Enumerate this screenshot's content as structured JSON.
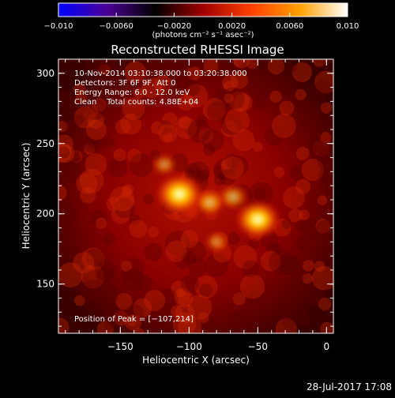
{
  "chart_data": {
    "type": "heatmap",
    "title": "Reconstructed RHESSI Image",
    "xlabel": "Heliocentric X (arcsec)",
    "ylabel": "Heliocentric Y (arcsec)",
    "xlim": [
      -195,
      5
    ],
    "ylim": [
      115,
      310
    ],
    "xticks": [
      -150,
      -100,
      -50,
      0
    ],
    "xtick_labels": [
      "−150",
      "−100",
      "−50",
      "0"
    ],
    "yticks": [
      150,
      200,
      250,
      300
    ],
    "ytick_labels": [
      "150",
      "200",
      "250",
      "300"
    ],
    "colorbar": {
      "range": [
        -0.01,
        0.01
      ],
      "ticks": [
        -0.01,
        -0.006,
        -0.002,
        0.002,
        0.006,
        0.01
      ],
      "tick_labels": [
        "−0.010",
        "−0.0060",
        "−0.0020",
        "0.0020",
        "0.0060",
        "0.010"
      ],
      "unit_label": "(photons cm⁻² s⁻¹ asec⁻²)",
      "colors": [
        "#0000ff",
        "#4b0096",
        "#000000",
        "#a00000",
        "#ff4000",
        "#ffa000",
        "#ffffff"
      ]
    },
    "annotations": [
      "10-Nov-2014 03:10:38.000 to 03:20:38.000",
      "Detectors: 3F 6F 9F, Att 0",
      "Energy Range: 6.0 - 12.0 keV",
      "Clean    Total counts: 4.88E+04"
    ],
    "peak_label": "Position of Peak = [−107,214]",
    "sources": [
      {
        "x": -107,
        "y": 214,
        "intensity": 1.0
      },
      {
        "x": -50,
        "y": 196,
        "intensity": 0.92
      },
      {
        "x": -85,
        "y": 208,
        "intensity": 0.45
      },
      {
        "x": -68,
        "y": 212,
        "intensity": 0.4
      },
      {
        "x": -118,
        "y": 235,
        "intensity": 0.25
      },
      {
        "x": -80,
        "y": 180,
        "intensity": 0.2
      }
    ]
  },
  "footer": {
    "timestamp": "28-Jul-2017 17:08"
  }
}
